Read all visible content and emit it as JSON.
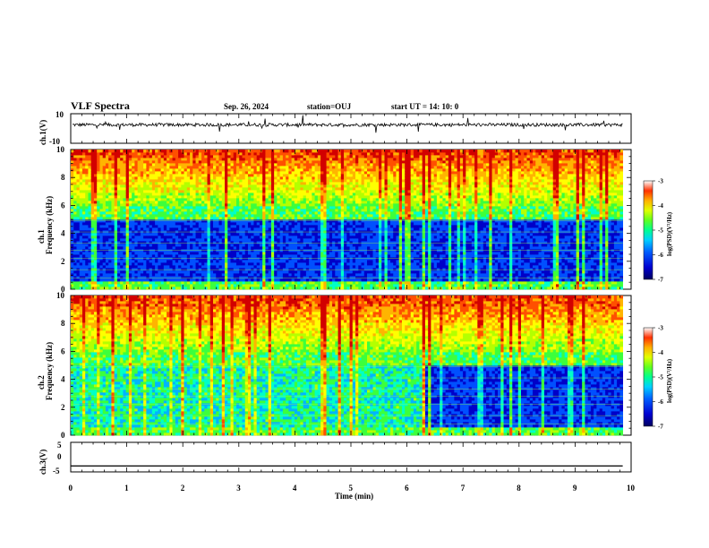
{
  "header": {
    "title": "VLF Spectra",
    "date": "Sep. 26, 2024",
    "station": "station=OUJ",
    "start_ut": "start  UT =   14: 10: 0"
  },
  "chart_data": [
    {
      "type": "line",
      "name": "ch1-waveform",
      "ylabel": "ch.1(V)",
      "ylim": [
        -10,
        10
      ],
      "yticks": [
        "10",
        "-10"
      ],
      "xlim": [
        0,
        10
      ],
      "baseline": 2.5,
      "color": "#000000"
    },
    {
      "type": "heatmap",
      "name": "ch1-spectrogram",
      "ylabel": "ch.1\nFrequency (kHz)",
      "ylabel_lines": [
        "ch.1",
        "Frequency (kHz)"
      ],
      "ylim": [
        0,
        10
      ],
      "yticks": [
        "0",
        "2",
        "4",
        "6",
        "8",
        "10"
      ],
      "xlim": [
        0,
        9.85
      ],
      "quiet_band_khz": [
        0.5,
        5
      ],
      "colorbar": {
        "label": "log(PSD)(V²/Hz)",
        "range": [
          -7,
          -3
        ],
        "ticks": [
          "-3",
          "-4",
          "-5",
          "-6",
          "-7"
        ]
      }
    },
    {
      "type": "heatmap",
      "name": "ch2-spectrogram",
      "ylabel": "ch.2\nFrequency (kHz)",
      "ylabel_lines": [
        "ch.2",
        "Frequency (kHz)"
      ],
      "ylim": [
        0,
        10
      ],
      "yticks": [
        "0",
        "2",
        "4",
        "6",
        "8",
        "10"
      ],
      "xlim": [
        0,
        9.85
      ],
      "quiet_band_after_min": 6.3,
      "colorbar": {
        "label": "log(PSD)(V²/Hz)",
        "range": [
          -7,
          -3
        ],
        "ticks": [
          "-3",
          "-4",
          "-5",
          "-6",
          "-7"
        ]
      }
    },
    {
      "type": "line",
      "name": "ch3-waveform",
      "ylabel": "ch.3(V)",
      "ylim": [
        -5,
        5
      ],
      "yticks": [
        "5",
        "0",
        "-5"
      ],
      "xlim": [
        0,
        10
      ],
      "values": [
        -3,
        -3
      ],
      "x": [
        0,
        9.85
      ],
      "color": "#000000"
    }
  ],
  "xaxis": {
    "label": "Time (min)",
    "ticks": [
      "0",
      "1",
      "2",
      "3",
      "4",
      "5",
      "6",
      "7",
      "8",
      "9",
      "10"
    ],
    "range": [
      0,
      10
    ]
  },
  "colors": {
    "scale": [
      "#00005a",
      "#0000c8",
      "#0050ff",
      "#00b4ff",
      "#00ffc8",
      "#3cff3c",
      "#b4ff00",
      "#ffff00",
      "#ffb400",
      "#ff5000",
      "#d20000"
    ]
  }
}
